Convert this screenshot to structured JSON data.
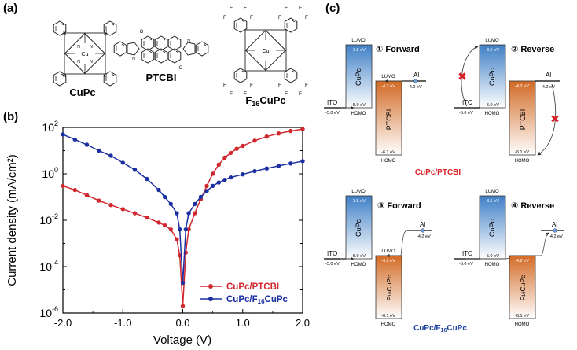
{
  "panels": {
    "a": "(a)",
    "b": "(b)",
    "c": "(c)"
  },
  "molecules": [
    {
      "name": "CuPc",
      "metal": "Cu"
    },
    {
      "name": "PTCBI"
    },
    {
      "name_main": "F",
      "name_sub": "16",
      "name_tail": "CuPc",
      "metal": "Cu",
      "atom": "F"
    }
  ],
  "molecule_atoms": {
    "oxygen": "O",
    "nitrogen": "N"
  },
  "chart_data": {
    "type": "line",
    "xlabel": "Voltage (V)",
    "ylabel": "Current density (mA/cm²)",
    "xlim": [
      -2.0,
      2.0
    ],
    "ylim_log10": [
      -6,
      2
    ],
    "yscale": "log",
    "xticks": [
      "-2.0",
      "-1.0",
      "0.0",
      "1.0",
      "2.0"
    ],
    "yticks": [
      {
        "base": "10",
        "exp": "-6"
      },
      {
        "base": "10",
        "exp": "-4"
      },
      {
        "base": "10",
        "exp": "-2"
      },
      {
        "base": "10",
        "exp": "0"
      },
      {
        "base": "10",
        "exp": "2"
      }
    ],
    "legend_position": "bottom-right",
    "series": [
      {
        "name": "CuPc/PTCBI",
        "color": "#d0282e",
        "x": [
          -2.0,
          -1.8,
          -1.6,
          -1.4,
          -1.2,
          -1.0,
          -0.8,
          -0.6,
          -0.4,
          -0.3,
          -0.2,
          -0.1,
          -0.05,
          0.0,
          0.05,
          0.1,
          0.2,
          0.3,
          0.4,
          0.5,
          0.6,
          0.7,
          0.8,
          0.9,
          1.0,
          1.2,
          1.4,
          1.6,
          1.8,
          2.0
        ],
        "y": [
          0.3,
          0.2,
          0.12,
          0.07,
          0.045,
          0.03,
          0.02,
          0.013,
          0.008,
          0.006,
          0.004,
          0.0015,
          0.0003,
          2e-06,
          0.0004,
          0.004,
          0.02,
          0.08,
          0.3,
          1.0,
          2.5,
          5.0,
          8.0,
          12,
          16,
          27,
          40,
          55,
          70,
          85
        ]
      },
      {
        "name": "CuPc/F₁₆CuPc",
        "legend_main": "CuPc/F",
        "legend_sub": "16",
        "legend_tail": "CuPc",
        "color": "#1c2fa0",
        "x": [
          -2.0,
          -1.8,
          -1.6,
          -1.4,
          -1.2,
          -1.0,
          -0.8,
          -0.6,
          -0.4,
          -0.3,
          -0.2,
          -0.1,
          -0.05,
          0.0,
          0.05,
          0.1,
          0.2,
          0.3,
          0.4,
          0.5,
          0.6,
          0.7,
          0.8,
          1.0,
          1.2,
          1.4,
          1.6,
          1.8,
          2.0
        ],
        "y": [
          50,
          30,
          18,
          10,
          6,
          3,
          1.5,
          0.6,
          0.2,
          0.1,
          0.05,
          0.02,
          0.004,
          2e-05,
          0.004,
          0.02,
          0.05,
          0.1,
          0.18,
          0.3,
          0.42,
          0.55,
          0.7,
          0.95,
          1.3,
          1.7,
          2.2,
          2.8,
          3.5
        ]
      }
    ]
  },
  "energy_diagrams": {
    "lumo": "LUMO",
    "homo": "HOMO",
    "ito": "ITO",
    "al": "Al",
    "cupc": "CuPc",
    "ptcbi": "PTCBI",
    "f16_main": "F",
    "f16_sub": "16",
    "f16_tail": "CuPc",
    "cupc_lumo": "-3.5 eV",
    "cupc_homo": "-5.0 eV",
    "acceptor_lumo": "-4.2 eV",
    "acceptor_homo": "-6.1 eV",
    "ito_level": "-5.0 eV",
    "al_level": "-4.2 eV",
    "d1": "① Forward",
    "d2": "② Reverse",
    "d3": "③ Forward",
    "d4": "④ Reverse",
    "pair_top": "CuPc/PTCBI",
    "pair_bottom": "CuPc/F₁₆CuPc",
    "pair_bottom_main": "CuPc/F",
    "pair_bottom_sub": "16",
    "pair_bottom_tail": "CuPc",
    "block_mark": "✖",
    "colors": {
      "cupc": "#4f8fcf",
      "acceptor": "#d9783a",
      "red": "#d9232a",
      "blue": "#1d3f9e"
    }
  }
}
